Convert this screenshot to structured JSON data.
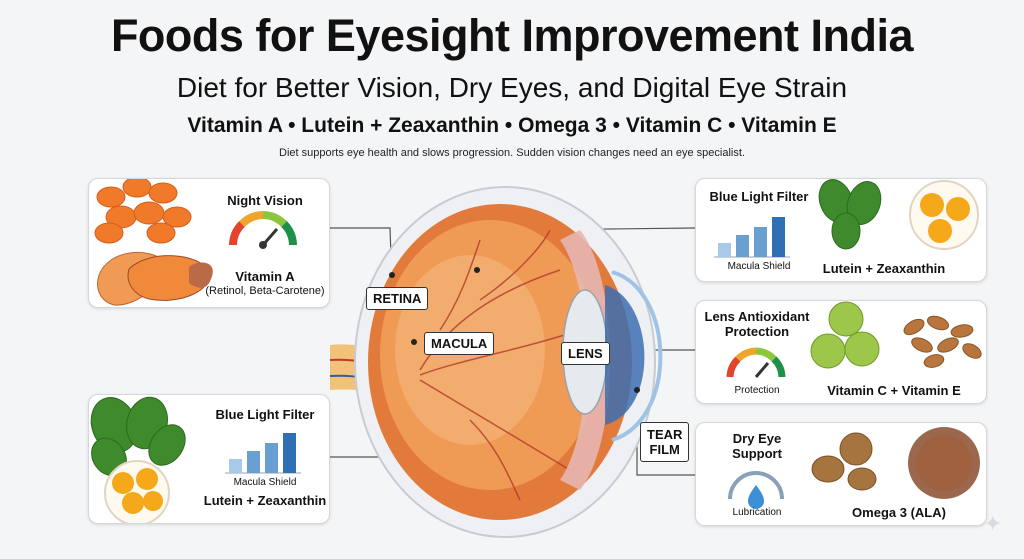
{
  "header": {
    "title": "Foods for Eyesight Improvement India",
    "subtitle": "Diet for Better Vision, Dry Eyes, and Digital Eye Strain",
    "nutrients": "Vitamin A • Lutein + Zeaxanthin • Omega 3 • Vitamin C • Vitamin E",
    "note": "Diet supports eye health and slows progression. Sudden vision changes need an eye specialist."
  },
  "cards": {
    "night_vision": {
      "heading": "Night Vision",
      "nutrient": "Vitamin A",
      "sub": "(Retinol, Beta-Carotene)"
    },
    "blue_light_left": {
      "heading": "Blue Light Filter",
      "chart_caption": "Macula Shield",
      "nutrient": "Lutein + Zeaxanthin",
      "bars": [
        0.35,
        0.55,
        0.75,
        1.0
      ]
    },
    "blue_light_right": {
      "heading": "Blue Light Filter",
      "chart_caption": "Macula Shield",
      "nutrient": "Lutein + Zeaxanthin",
      "bars": [
        0.35,
        0.55,
        0.75,
        1.0
      ]
    },
    "lens": {
      "heading_line1": "Lens Antioxidant",
      "heading_line2": "Protection",
      "gauge_caption": "Protection",
      "nutrient": "Vitamin C + Vitamin E"
    },
    "dry_eye": {
      "heading_line1": "Dry Eye",
      "heading_line2": "Support",
      "gauge_caption": "Lubrication",
      "nutrient": "Omega 3 (ALA)"
    }
  },
  "eye_labels": {
    "retina": "RETINA",
    "macula": "MACULA",
    "lens": "LENS",
    "tear_line1": "TEAR",
    "tear_line2": "FILM"
  },
  "colors": {
    "carrot": "#f07a2a",
    "spinach": "#3f8a2c",
    "yolk": "#f5a81a",
    "eye": "#e27a3c",
    "bar": "#4a86c5"
  }
}
